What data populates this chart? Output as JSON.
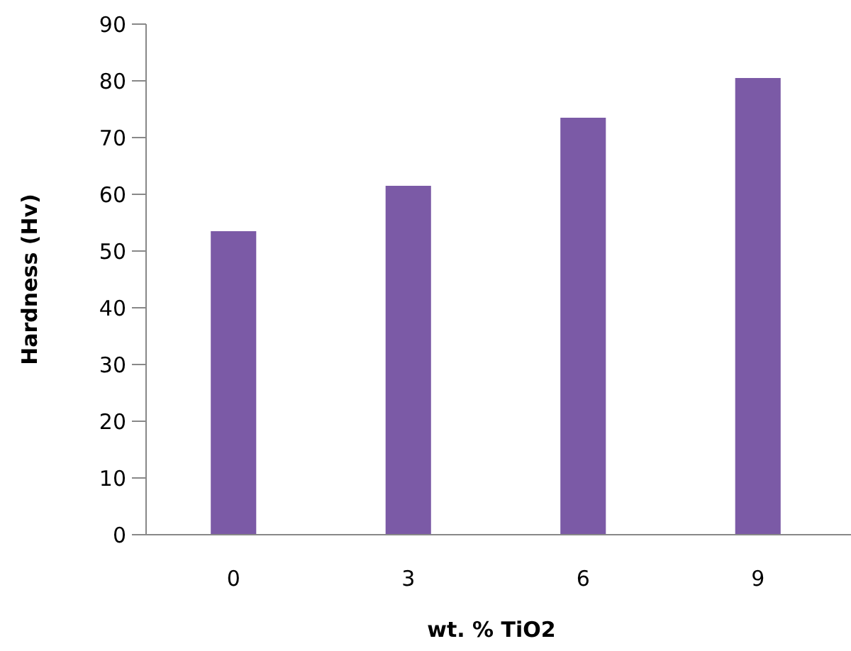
{
  "chart_data": {
    "type": "bar",
    "xlabel": "wt. % TiO2",
    "ylabel": "Hardness (Hv)",
    "categories": [
      "0",
      "3",
      "6",
      "9"
    ],
    "values": [
      53.5,
      61.5,
      73.5,
      80.5
    ],
    "color": "#7b5aa6",
    "ylim": [
      0,
      90
    ],
    "yticks": [
      0,
      10,
      20,
      30,
      40,
      50,
      60,
      70,
      80,
      90
    ]
  }
}
